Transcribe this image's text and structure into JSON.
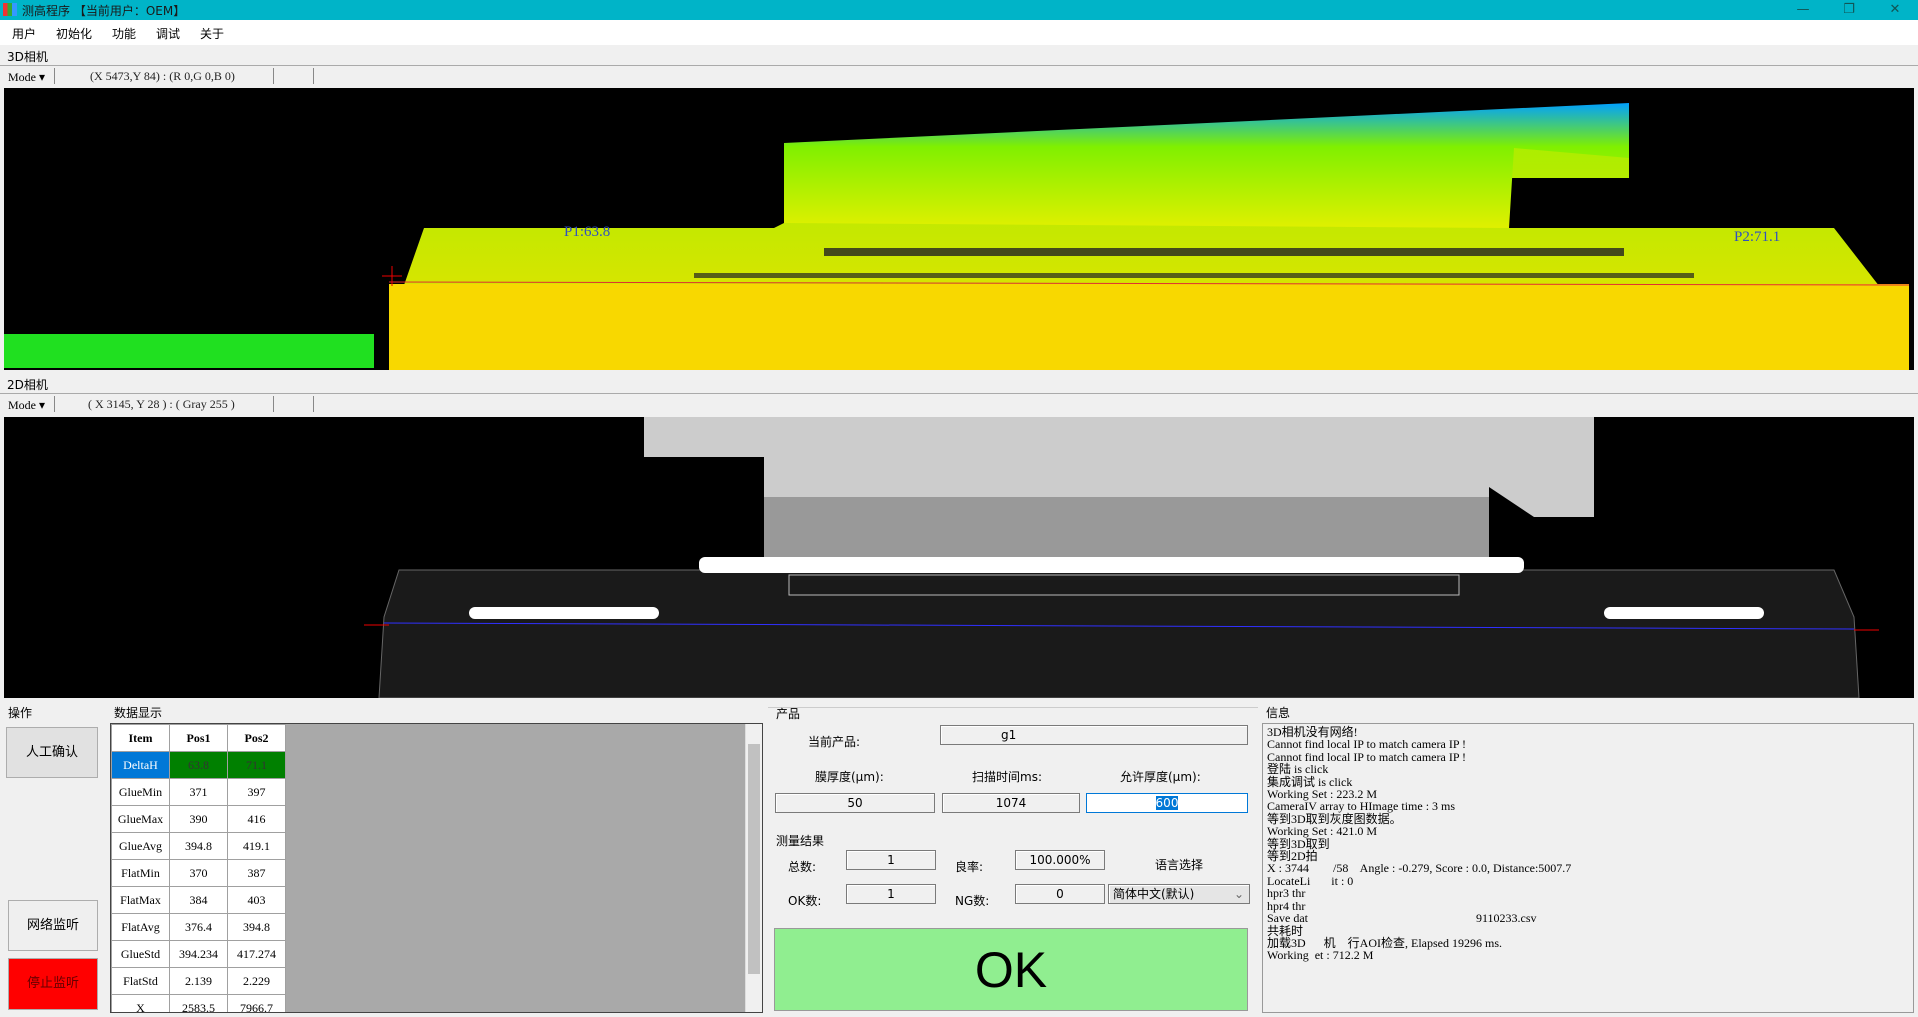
{
  "window": {
    "title": "测高程序 【当前用户：OEM】",
    "minimize": "—",
    "maximize": "❐",
    "close": "✕"
  },
  "menu": [
    "用户",
    "初始化",
    "功能",
    "调试",
    "关于"
  ],
  "camera3d": {
    "label": "3D相机",
    "mode": "Mode ▾",
    "coord": "(X 5473,Y 84) : (R 0,G 0,B 0)",
    "p1": "P1:63.8",
    "p2": "P2:71.1"
  },
  "camera2d": {
    "label": "2D相机",
    "mode": "Mode ▾",
    "coord": "( X 3145, Y 28 ) : ( Gray 255 )"
  },
  "operations": {
    "title": "操作",
    "manual_confirm": "人工确认",
    "network_listen": "网络监听",
    "stop_listen": "停止监听"
  },
  "data_display": {
    "title": "数据显示",
    "columns": [
      "Item",
      "Pos1",
      "Pos2"
    ],
    "rows": [
      [
        "DeltaH",
        "63.8",
        "71.1"
      ],
      [
        "GlueMin",
        "371",
        "397"
      ],
      [
        "GlueMax",
        "390",
        "416"
      ],
      [
        "GlueAvg",
        "394.8",
        "419.1"
      ],
      [
        "FlatMin",
        "370",
        "387"
      ],
      [
        "FlatMax",
        "384",
        "403"
      ],
      [
        "FlatAvg",
        "376.4",
        "394.8"
      ],
      [
        "GlueStd",
        "394.234",
        "417.274"
      ],
      [
        "FlatStd",
        "2.139",
        "2.229"
      ],
      [
        "X",
        "2583.5",
        "7966.7"
      ]
    ]
  },
  "product": {
    "title": "产品",
    "current_label": "当前产品:",
    "current_value": "g1",
    "film_label": "膜厚度(μm):",
    "film_value": "50",
    "scan_label": "扫描时间ms:",
    "scan_value": "1074",
    "allow_label": "允许厚度(μm):",
    "allow_value": "600"
  },
  "results": {
    "title": "测量结果",
    "total_label": "总数:",
    "total_value": "1",
    "yield_label": "良率:",
    "yield_value": "100.000%",
    "ok_label": "OK数:",
    "ok_value": "1",
    "ng_label": "NG数:",
    "ng_value": "0",
    "lang_label": "语言选择",
    "lang_value": "简体中文(默认)",
    "verdict": "OK",
    "verdict_color": "#90ee90"
  },
  "info": {
    "title": "信息",
    "lines": [
      "3D相机没有网络!",
      "Cannot find local IP to match camera IP !",
      "Cannot find local IP to match camera IP !",
      "登陆 is click",
      "集成调试 is click",
      "Working Set : 223.2 M",
      "CameraIV array to HImage time : 3 ms",
      "等到3D取到灰度图数据。",
      "Working Set : 421.0 M",
      "等到3D取到",
      "等到2D拍",
      "X : 3744        /58    Angle : -0.279, Score : 0.0, Distance:5007.7",
      "LocateLi       it : 0",
      "hpr3 thr",
      "hpr4 thr",
      "Save dat                                                        9110233.csv",
      "共耗时",
      "加载3D      机    行AOI检查, Elapsed 19296 ms.",
      "Working  et : 712.2 M"
    ]
  }
}
